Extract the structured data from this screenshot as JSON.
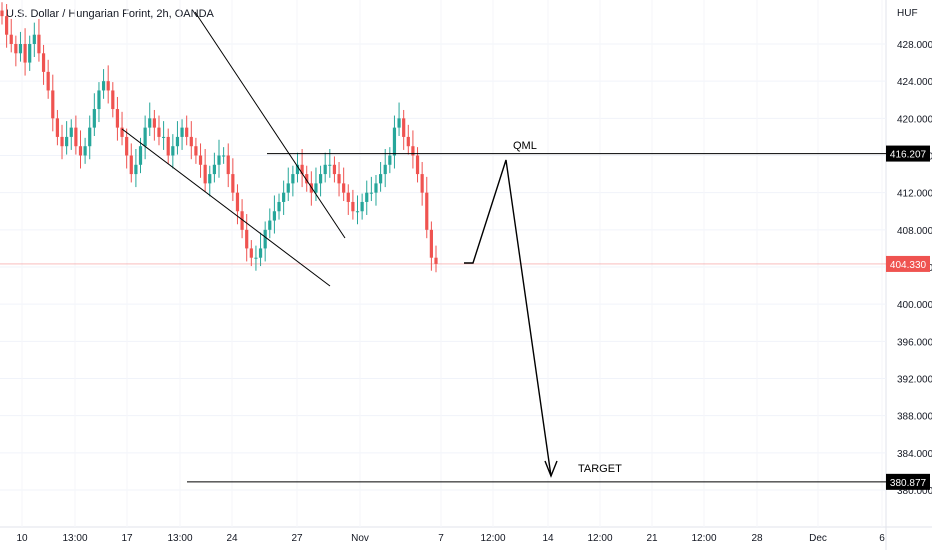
{
  "header": {
    "title": "U.S. Dollar / Hungarian Forint, 2h, OANDA"
  },
  "chart_data": {
    "type": "candlestick",
    "title": "U.S. Dollar / Hungarian Forint, 2h, OANDA",
    "currency": "HUF",
    "ylim": [
      378,
      432
    ],
    "y_ticks": [
      "428.000",
      "424.000",
      "420.000",
      "416.000",
      "412.000",
      "408.000",
      "404.000",
      "400.000",
      "396.000",
      "392.000",
      "388.000",
      "384.000",
      "380.000"
    ],
    "x_ticks": [
      "10",
      "13:00",
      "17",
      "13:00",
      "24",
      "27",
      "Nov",
      "7",
      "12:00",
      "14",
      "12:00",
      "21",
      "12:00",
      "28",
      "Dec",
      "6"
    ],
    "price_series_closes": [
      431,
      429,
      428,
      427,
      428,
      426,
      428,
      429,
      427,
      425,
      423,
      420,
      418,
      417,
      418,
      419,
      417,
      416,
      417,
      419,
      421,
      423,
      424,
      423,
      421,
      419,
      418,
      416,
      414,
      415,
      417,
      419,
      420,
      419,
      418,
      418,
      416,
      417,
      418,
      419,
      418,
      417,
      416,
      415,
      413,
      414,
      415,
      416,
      416,
      414,
      412,
      410,
      408,
      406,
      405,
      405,
      406,
      408,
      409,
      410,
      411,
      412,
      413,
      414,
      415,
      414,
      413,
      412,
      413,
      414,
      415,
      415,
      414,
      413,
      412,
      411,
      410,
      410,
      411,
      412,
      412,
      413,
      414,
      415,
      416,
      419,
      420,
      418,
      417,
      416,
      414,
      412,
      408,
      405,
      404.33
    ],
    "current_price": "404.330",
    "current_price_value": 404.33,
    "levels": [
      {
        "label": "QML",
        "value": 416.207,
        "badge": "416.207"
      },
      {
        "label": "TARGET",
        "value": 380.877,
        "badge": "380.877"
      }
    ],
    "colors": {
      "up": "#26a69a",
      "down": "#ef5350",
      "price_line": "#ef5350",
      "drawing": "#000000"
    },
    "grid": true
  }
}
